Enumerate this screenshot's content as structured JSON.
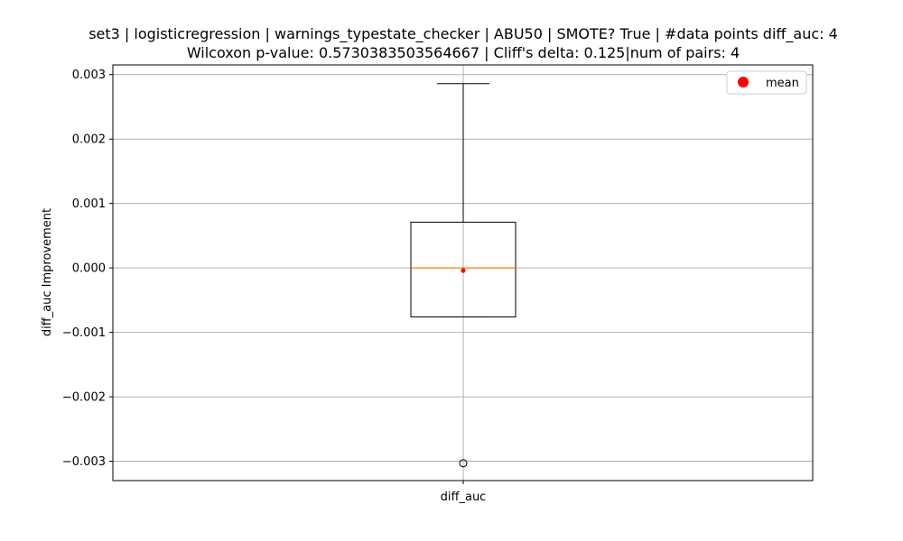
{
  "chart_data": {
    "type": "box",
    "title_line1": "set3 | logisticregression | warnings_typestate_checker | ABU50 | SMOTE? True | #data points diff_auc: 4",
    "title_line2": "Wilcoxon p-value: 0.5730383503564667 | Cliff's delta: 0.125|num of pairs: 4",
    "xlabel": "",
    "ylabel": "diff_auc Improvement",
    "categories": [
      "diff_auc"
    ],
    "ylim": [
      -0.0033,
      0.00315
    ],
    "yticks": [
      -0.003,
      -0.002,
      -0.001,
      0.0,
      0.001,
      0.002,
      0.003
    ],
    "ytick_labels": [
      "−0.003",
      "−0.002",
      "−0.001",
      "0.000",
      "0.001",
      "0.002",
      "0.003"
    ],
    "box": {
      "whisker_low": -0.00076,
      "q1": -0.00076,
      "median": 0.0,
      "q3": 0.00071,
      "whisker_high": 0.00286,
      "outliers": [
        -0.00303
      ],
      "mean": -4e-05
    },
    "legend": {
      "label": "mean",
      "placement": "upper right"
    },
    "grid": true,
    "colors": {
      "box": "#000000",
      "median": "#ff7f0e",
      "mean": "#ff0000",
      "grid": "#b0b0b0"
    }
  }
}
